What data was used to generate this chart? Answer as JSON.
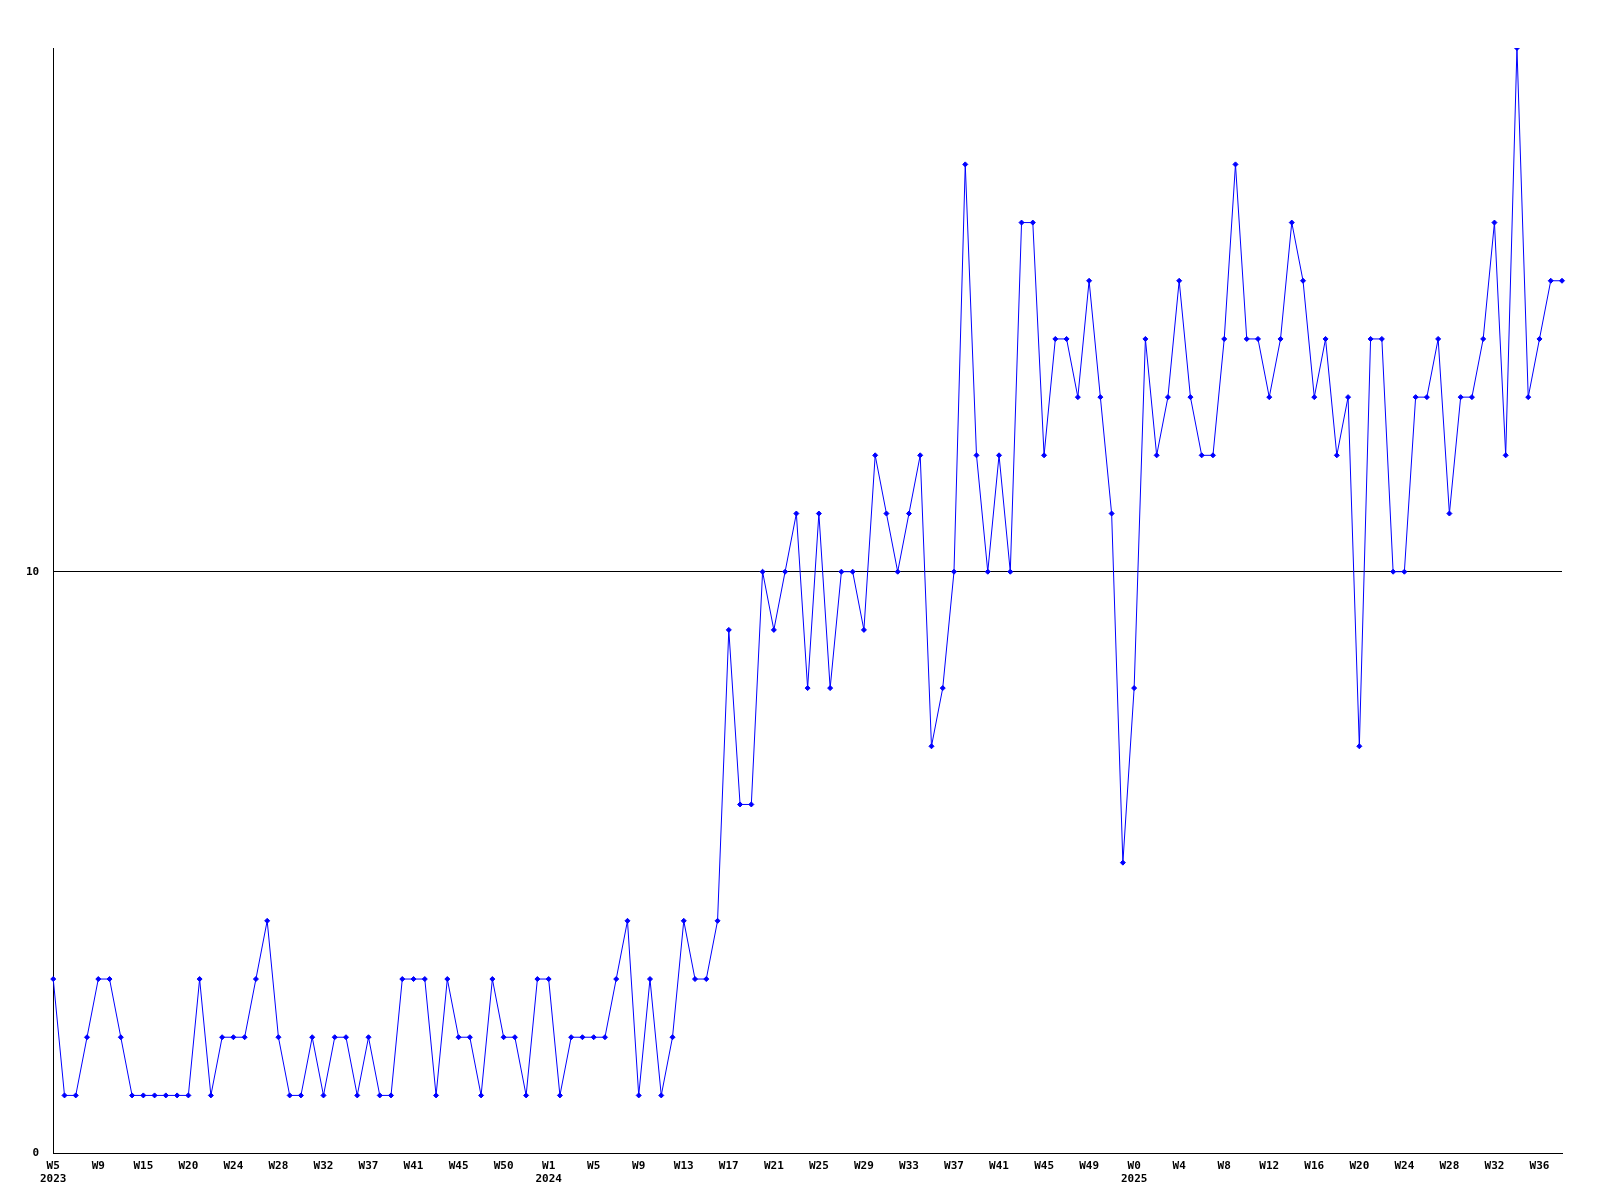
{
  "chart_data": {
    "type": "line",
    "categories": [
      "W5\n2023",
      null,
      null,
      null,
      "W9",
      null,
      null,
      null,
      "W15",
      null,
      null,
      null,
      "W20",
      null,
      null,
      null,
      "W24",
      null,
      null,
      null,
      "W28",
      null,
      null,
      null,
      "W32",
      null,
      null,
      null,
      "W37",
      null,
      null,
      null,
      "W41",
      null,
      null,
      null,
      "W45",
      null,
      null,
      null,
      "W50",
      null,
      null,
      null,
      "W1\n2024",
      null,
      null,
      null,
      "W5",
      null,
      null,
      null,
      "W9",
      null,
      null,
      null,
      "W13",
      null,
      null,
      null,
      "W17",
      null,
      null,
      null,
      "W21",
      null,
      null,
      null,
      "W25",
      null,
      null,
      null,
      "W29",
      null,
      null,
      null,
      "W33",
      null,
      null,
      null,
      "W37",
      null,
      null,
      null,
      "W41",
      null,
      null,
      null,
      "W45",
      null,
      null,
      null,
      "W49",
      null,
      null,
      null,
      "W0\n2025",
      null,
      null,
      null,
      "W4",
      null,
      null,
      null,
      "W8",
      null,
      null,
      null,
      "W12",
      null,
      null,
      null,
      "W16",
      null,
      null,
      null,
      "W20",
      null,
      null,
      null,
      "W24",
      null,
      null,
      null,
      "W28",
      null,
      null,
      null,
      "W32",
      null,
      null,
      null,
      "W36",
      null,
      null
    ],
    "series": [
      {
        "color": "#0000ff",
        "values": [
          3,
          1,
          1,
          2,
          3,
          3,
          2,
          1,
          1,
          1,
          1,
          1,
          1,
          3,
          1,
          2,
          2,
          2,
          3,
          4,
          2,
          1,
          1,
          2,
          1,
          2,
          2,
          1,
          2,
          1,
          1,
          3,
          3,
          3,
          1,
          3,
          2,
          2,
          1,
          3,
          2,
          2,
          1,
          3,
          3,
          1,
          2,
          2,
          2,
          2,
          3,
          4,
          1,
          3,
          1,
          2,
          4,
          3,
          3,
          4,
          9,
          6,
          6,
          10,
          9,
          10,
          11,
          8,
          11,
          8,
          10,
          10,
          9,
          12,
          11,
          10,
          11,
          12,
          7,
          8,
          10,
          17,
          12,
          10,
          12,
          10,
          16,
          16,
          12,
          14,
          14,
          13,
          15,
          13,
          11,
          5,
          8,
          14,
          12,
          13,
          15,
          13,
          12,
          12,
          14,
          17,
          14,
          14,
          13,
          14,
          16,
          15,
          13,
          14,
          12,
          13,
          7,
          14,
          14,
          10,
          10,
          13,
          13,
          14,
          11,
          13,
          13,
          14,
          16,
          12,
          19,
          13,
          14,
          15,
          15
        ]
      }
    ],
    "ylim": [
      0,
      19
    ],
    "yticks": [
      0,
      10
    ],
    "grid": "y",
    "legend": false,
    "marker": "diamond",
    "line_style": "solid"
  }
}
